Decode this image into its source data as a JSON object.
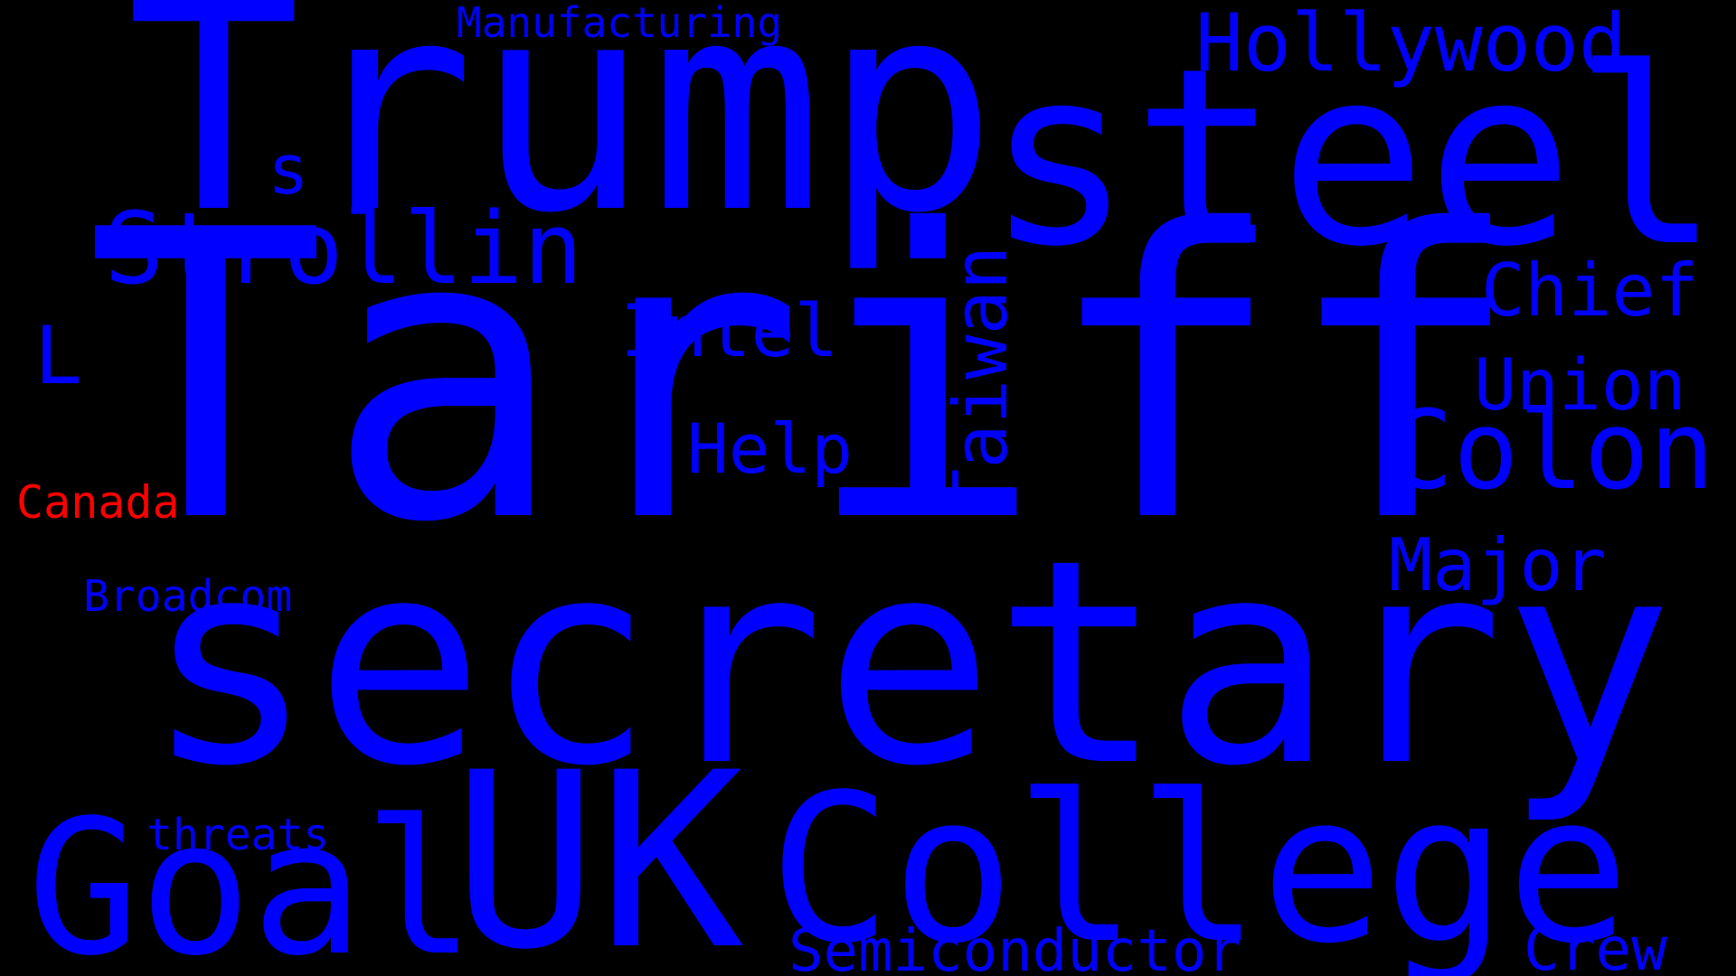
{
  "colors": {
    "background": "#000000",
    "primary": "#0000ff",
    "accent": "#ff0000"
  },
  "words": [
    {
      "text": "Tariff",
      "color": "#0000ff"
    },
    {
      "text": "secretary",
      "color": "#0000ff"
    },
    {
      "text": "Trump",
      "color": "#0000ff"
    },
    {
      "text": "steel",
      "color": "#0000ff"
    },
    {
      "text": "UK",
      "color": "#0000ff"
    },
    {
      "text": "College",
      "color": "#0000ff"
    },
    {
      "text": "Goal",
      "color": "#0000ff"
    },
    {
      "text": "Strollin",
      "color": "#0000ff"
    },
    {
      "text": "Colon",
      "color": "#0000ff"
    },
    {
      "text": "Hollywood",
      "color": "#0000ff"
    },
    {
      "text": "Chief",
      "color": "#0000ff"
    },
    {
      "text": "Union",
      "color": "#0000ff"
    },
    {
      "text": "Major",
      "color": "#0000ff"
    },
    {
      "text": "Intel",
      "color": "#0000ff"
    },
    {
      "text": "Help",
      "color": "#0000ff"
    },
    {
      "text": "Taiwan",
      "color": "#0000ff"
    },
    {
      "text": "Semiconductor",
      "color": "#0000ff"
    },
    {
      "text": "Crew",
      "color": "#0000ff"
    },
    {
      "text": "threats",
      "color": "#0000ff"
    },
    {
      "text": "Broadcom",
      "color": "#0000ff"
    },
    {
      "text": "Manufacturing",
      "color": "#0000ff"
    },
    {
      "text": "Canada",
      "color": "#ff0000"
    },
    {
      "text": "L",
      "color": "#0000ff"
    },
    {
      "text": "s",
      "color": "#0000ff"
    }
  ]
}
